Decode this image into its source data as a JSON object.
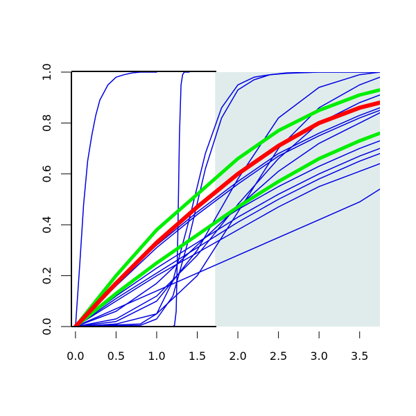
{
  "chart_data": {
    "type": "line",
    "title": "",
    "xlabel": "",
    "ylabel": "",
    "xlim": [
      -0.05,
      3.75
    ],
    "ylim": [
      0,
      1
    ],
    "x_ticks": [
      0.0,
      0.5,
      1.0,
      1.5,
      2.0,
      2.5,
      3.0,
      3.5
    ],
    "x_tick_labels": [
      "0.0",
      "0.5",
      "1.0",
      "1.5",
      "2.0",
      "2.5",
      "3.0",
      "3.5"
    ],
    "y_ticks": [
      0.0,
      0.2,
      0.4,
      0.6,
      0.8,
      1.0
    ],
    "y_tick_labels": [
      "0.0",
      "0.2",
      "0.4",
      "0.6",
      "0.8",
      "1.0"
    ],
    "grid": false,
    "legend": "none",
    "shaded_region": {
      "x_from": 1.72,
      "x_to": 3.75,
      "color": "#e0ecec"
    },
    "series": [
      {
        "color": "#0000e0",
        "width": 1.5,
        "x": [
          0,
          0.05,
          0.1,
          0.15,
          0.2,
          0.25,
          0.3,
          0.4,
          0.5,
          0.6,
          0.7,
          0.8,
          1.0
        ],
        "values": [
          0,
          0.23,
          0.48,
          0.65,
          0.75,
          0.83,
          0.89,
          0.95,
          0.98,
          0.99,
          0.997,
          1.0,
          1.0
        ]
      },
      {
        "color": "#0000e0",
        "width": 1.5,
        "x": [
          0,
          1.2,
          1.22,
          1.24,
          1.26,
          1.28,
          1.3,
          1.32,
          1.34,
          1.36,
          1.4
        ],
        "values": [
          0,
          0,
          0.005,
          0.06,
          0.35,
          0.75,
          0.95,
          0.99,
          1.0,
          1.0,
          1.0
        ]
      },
      {
        "color": "#0000e0",
        "width": 1.5,
        "x": [
          0,
          0.8,
          1.0,
          1.2,
          1.4,
          1.6,
          1.8,
          2.0,
          2.2,
          2.4,
          2.6,
          3.0,
          3.5,
          3.75
        ],
        "values": [
          0,
          0.005,
          0.03,
          0.12,
          0.35,
          0.62,
          0.82,
          0.93,
          0.97,
          0.99,
          0.995,
          1.0,
          1.0,
          1.0
        ]
      },
      {
        "color": "#0000e0",
        "width": 1.5,
        "x": [
          0,
          0.8,
          1.0,
          1.2,
          1.4,
          1.6,
          1.8,
          2.0,
          2.2,
          2.4,
          2.6,
          3.0,
          3.5,
          3.75
        ],
        "values": [
          0,
          0.01,
          0.05,
          0.18,
          0.42,
          0.68,
          0.86,
          0.95,
          0.98,
          0.99,
          0.997,
          1.0,
          1.0,
          1.0
        ]
      },
      {
        "color": "#0000e0",
        "width": 1.5,
        "x": [
          0,
          0.5,
          1.0,
          1.5,
          2.0,
          2.5,
          3.0,
          3.5,
          3.75
        ],
        "values": [
          0,
          0.02,
          0.1,
          0.3,
          0.58,
          0.82,
          0.94,
          0.99,
          1.0
        ]
      },
      {
        "color": "#0000e0",
        "width": 1.5,
        "x": [
          0,
          0.5,
          1.0,
          1.5,
          2.0,
          2.5,
          3.0,
          3.5,
          3.75
        ],
        "values": [
          0,
          0.01,
          0.05,
          0.2,
          0.45,
          0.7,
          0.86,
          0.95,
          0.98
        ]
      },
      {
        "color": "#0000e0",
        "width": 1.5,
        "x": [
          0,
          0.5,
          1.0,
          1.5,
          2.0,
          2.5,
          3.0,
          3.5,
          3.75
        ],
        "values": [
          0,
          0.03,
          0.12,
          0.28,
          0.48,
          0.66,
          0.8,
          0.88,
          0.91
        ]
      },
      {
        "color": "#0000e0",
        "width": 1.5,
        "x": [
          0,
          0.5,
          1.0,
          1.5,
          2.0,
          2.5,
          3.0,
          3.5,
          3.75
        ],
        "values": [
          0,
          0.06,
          0.17,
          0.32,
          0.47,
          0.61,
          0.72,
          0.8,
          0.84
        ]
      },
      {
        "color": "#0000e0",
        "width": 1.5,
        "x": [
          0,
          0.5,
          1.0,
          1.5,
          2.0,
          2.5,
          3.0,
          3.5,
          3.75
        ],
        "values": [
          0,
          0.16,
          0.31,
          0.44,
          0.56,
          0.67,
          0.75,
          0.82,
          0.85
        ]
      },
      {
        "color": "#0000e0",
        "width": 1.5,
        "x": [
          0,
          0.5,
          1.0,
          1.5,
          2.0,
          2.5,
          3.0,
          3.5,
          3.75
        ],
        "values": [
          0,
          0.17,
          0.32,
          0.45,
          0.57,
          0.68,
          0.76,
          0.83,
          0.86
        ]
      },
      {
        "color": "#0000e0",
        "width": 1.5,
        "x": [
          0,
          0.5,
          1.0,
          1.5,
          2.0,
          2.5,
          3.0,
          3.5,
          3.75
        ],
        "values": [
          0,
          0.13,
          0.25,
          0.36,
          0.46,
          0.55,
          0.63,
          0.7,
          0.73
        ]
      },
      {
        "color": "#0000e0",
        "width": 1.5,
        "x": [
          0,
          0.5,
          1.0,
          1.5,
          2.0,
          2.5,
          3.0,
          3.5,
          3.75
        ],
        "values": [
          0,
          0.12,
          0.23,
          0.33,
          0.43,
          0.52,
          0.6,
          0.67,
          0.7
        ]
      },
      {
        "color": "#0000e0",
        "width": 1.5,
        "x": [
          0,
          0.5,
          1.0,
          1.5,
          2.0,
          2.5,
          3.0,
          3.5,
          3.75
        ],
        "values": [
          0,
          0.11,
          0.21,
          0.31,
          0.41,
          0.5,
          0.58,
          0.65,
          0.68
        ]
      },
      {
        "color": "#0000e0",
        "width": 1.5,
        "x": [
          0,
          0.5,
          1.0,
          1.5,
          2.0,
          2.5,
          3.0,
          3.5,
          3.75
        ],
        "values": [
          0,
          0.1,
          0.2,
          0.29,
          0.38,
          0.47,
          0.55,
          0.61,
          0.64
        ]
      },
      {
        "color": "#0000e0",
        "width": 1.5,
        "x": [
          0,
          0.5,
          1.0,
          1.5,
          2.0,
          2.5,
          3.0,
          3.5,
          3.75
        ],
        "values": [
          0,
          0.07,
          0.14,
          0.21,
          0.28,
          0.35,
          0.42,
          0.49,
          0.54
        ]
      },
      {
        "color": "#00ee00",
        "width": 5,
        "x": [
          0,
          0.5,
          1.0,
          1.5,
          2.0,
          2.5,
          3.0,
          3.5,
          3.75
        ],
        "values": [
          0,
          0.13,
          0.25,
          0.36,
          0.47,
          0.57,
          0.66,
          0.73,
          0.76
        ]
      },
      {
        "color": "#00ee00",
        "width": 5,
        "x": [
          0,
          0.5,
          1.0,
          1.5,
          2.0,
          2.5,
          3.0,
          3.5,
          3.75
        ],
        "values": [
          0,
          0.2,
          0.38,
          0.52,
          0.66,
          0.77,
          0.85,
          0.91,
          0.93
        ]
      },
      {
        "color": "#ff0000",
        "width": 6,
        "x": [
          0,
          0.5,
          1.0,
          1.5,
          2.0,
          2.5,
          3.0,
          3.5,
          3.75
        ],
        "values": [
          0,
          0.17,
          0.33,
          0.47,
          0.6,
          0.71,
          0.8,
          0.86,
          0.88
        ]
      }
    ]
  }
}
